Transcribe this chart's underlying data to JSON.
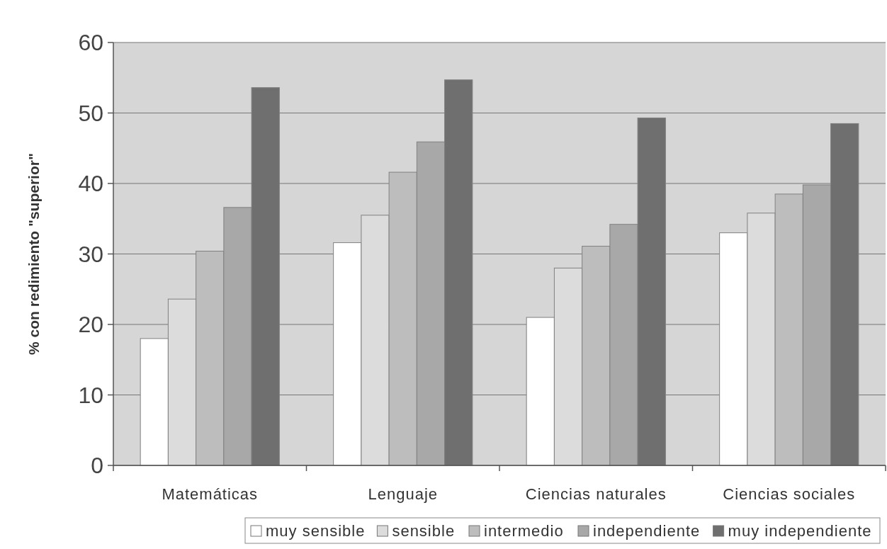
{
  "chart_data": {
    "type": "bar",
    "ylabel": "% con redimiento \"superior\"",
    "categories": [
      "Matemáticas",
      "Lenguaje",
      "Ciencias naturales",
      "Ciencias sociales"
    ],
    "series": [
      {
        "name": "muy sensible",
        "color": "#ffffff",
        "values": [
          18,
          31.6,
          21,
          33
        ]
      },
      {
        "name": "sensible",
        "color": "#dcdcdc",
        "values": [
          23.6,
          35.5,
          28,
          35.8
        ]
      },
      {
        "name": "intermedio",
        "color": "#bdbdbd",
        "values": [
          30.4,
          41.6,
          31.1,
          38.5
        ]
      },
      {
        "name": "independiente",
        "color": "#a8a8a8",
        "values": [
          36.6,
          45.9,
          34.2,
          39.8
        ]
      },
      {
        "name": "muy independiente",
        "color": "#6f6f6f",
        "values": [
          53.6,
          54.7,
          49.3,
          48.5
        ]
      }
    ],
    "ylim": [
      0,
      60
    ],
    "yticks": [
      0,
      10,
      20,
      30,
      40,
      50,
      60
    ],
    "grid": "y",
    "legend": "bottom"
  }
}
